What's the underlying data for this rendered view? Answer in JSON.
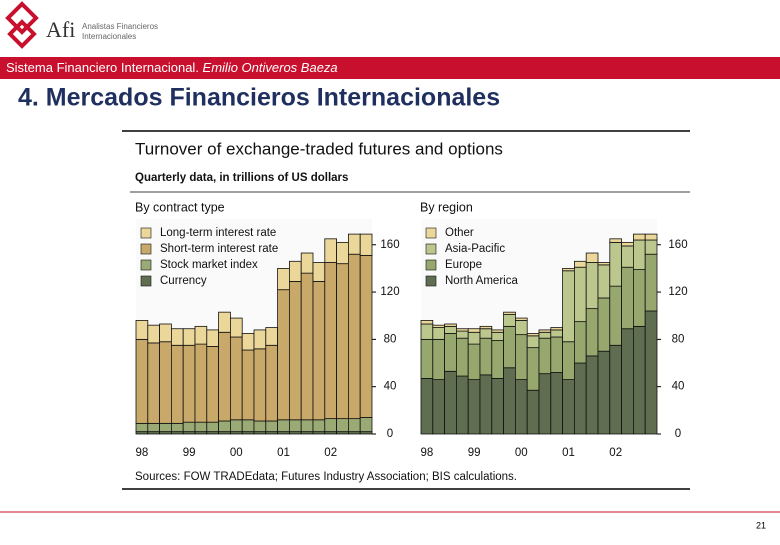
{
  "header": {
    "logo": "Afi",
    "logo_sub": [
      "Analistas Financieros",
      "Internacionales"
    ],
    "banner": "Sistema Financiero Internacional. ",
    "banner_author": "Emilio Ontiveros Baeza",
    "slide_title": "4. Mercados Financieros Internacionales"
  },
  "figure": {
    "title": "Turnover of exchange-traded futures and options",
    "subtitle": "Quarterly data, in trillions of US dollars",
    "source": "Sources: FOW TRADEdata; Futures Industry Association; BIS calculations."
  },
  "page_number": "21",
  "chart_data": [
    {
      "type": "stacked_bar",
      "title": "By contract type",
      "categories": [
        "98",
        null,
        null,
        null,
        "99",
        null,
        null,
        null,
        "00",
        null,
        null,
        null,
        "01",
        null,
        null,
        null,
        "02",
        null,
        null,
        null
      ],
      "ylim": [
        0,
        175
      ],
      "yticks": [
        0,
        40,
        80,
        120,
        160
      ],
      "series": [
        {
          "name": "Currency",
          "color": "#5f6e50",
          "values": [
            2,
            2,
            2,
            2,
            2,
            2,
            2,
            2,
            2,
            2,
            2,
            2,
            2,
            2,
            2,
            2,
            2,
            2,
            2,
            2
          ]
        },
        {
          "name": "Stock market index",
          "color": "#9aaa74",
          "values": [
            7,
            7,
            7,
            7,
            8,
            8,
            8,
            9,
            10,
            10,
            9,
            9,
            10,
            10,
            10,
            10,
            11,
            11,
            11,
            12
          ]
        },
        {
          "name": "Short-term interest rate",
          "color": "#c8a96a",
          "values": [
            71,
            68,
            69,
            66,
            65,
            66,
            64,
            75,
            70,
            59,
            61,
            64,
            110,
            117,
            124,
            117,
            132,
            131,
            139,
            137
          ]
        },
        {
          "name": "Long-term interest rate",
          "color": "#ecd79a",
          "values": [
            16,
            15,
            15,
            14,
            14,
            15,
            14,
            17,
            16,
            14,
            16,
            15,
            18,
            17,
            17,
            16,
            20,
            18,
            17,
            18
          ]
        }
      ]
    },
    {
      "type": "stacked_bar",
      "title": "By region",
      "categories": [
        "98",
        null,
        null,
        null,
        "99",
        null,
        null,
        null,
        "00",
        null,
        null,
        null,
        "01",
        null,
        null,
        null,
        "02",
        null,
        null,
        null
      ],
      "ylim": [
        0,
        175
      ],
      "yticks": [
        0,
        40,
        80,
        120,
        160
      ],
      "series": [
        {
          "name": "North America",
          "color": "#5f6e50",
          "values": [
            47,
            46,
            53,
            49,
            46,
            50,
            47,
            56,
            46,
            37,
            51,
            52,
            46,
            60,
            66,
            70,
            75,
            89,
            91,
            104
          ]
        },
        {
          "name": "Europe",
          "color": "#97a86e",
          "values": [
            33,
            34,
            32,
            32,
            30,
            31,
            32,
            35,
            38,
            36,
            30,
            30,
            32,
            35,
            40,
            45,
            50,
            52,
            48,
            48
          ]
        },
        {
          "name": "Asia-Pacific",
          "color": "#bcc78e",
          "values": [
            13,
            10,
            6,
            6,
            10,
            8,
            7,
            10,
            12,
            10,
            5,
            6,
            60,
            46,
            39,
            28,
            37,
            18,
            25,
            12
          ]
        },
        {
          "name": "Other",
          "color": "#ecd79a",
          "values": [
            3,
            2,
            2,
            2,
            3,
            2,
            2,
            2,
            2,
            2,
            2,
            2,
            2,
            5,
            8,
            2,
            3,
            3,
            5,
            5
          ]
        }
      ]
    }
  ]
}
